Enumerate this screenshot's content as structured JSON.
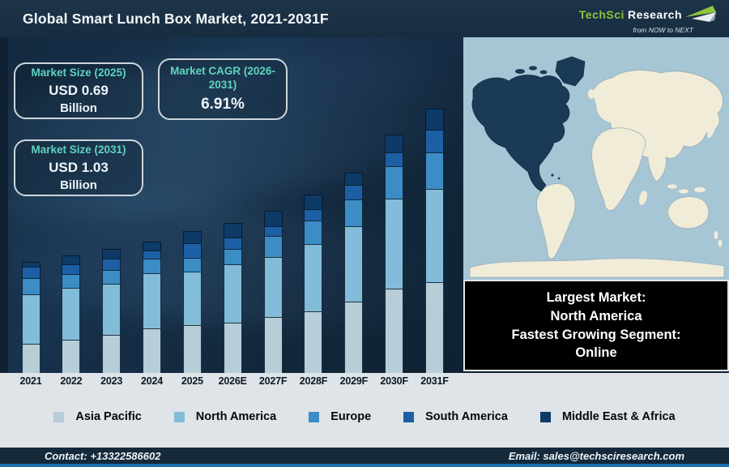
{
  "header": {
    "title": "Global Smart Lunch Box Market, 2021-2031F",
    "logo": {
      "brand_primary": "TechSci",
      "brand_secondary": "Research",
      "tagline": "from NOW to NEXT",
      "brand_color": "#8dc63f"
    }
  },
  "stat_boxes": [
    {
      "label": "Market Size (2025)",
      "value": "USD 0.69",
      "unit": "Billion"
    },
    {
      "label": "Market CAGR (2026-2031)",
      "value": "6.91%",
      "unit": ""
    },
    {
      "label": "Market Size (2031)",
      "value": "USD 1.03",
      "unit": "Billion"
    }
  ],
  "chart_data": {
    "type": "bar",
    "stacked": true,
    "title": "Global Smart Lunch Box Market, 2021-2031F",
    "categories": [
      "2021",
      "2022",
      "2023",
      "2024",
      "2025",
      "2026E",
      "2027F",
      "2028F",
      "2029F",
      "2030F",
      "2031F"
    ],
    "series": [
      {
        "name": "Asia Pacific",
        "color": "#b7cdd7",
        "values": [
          36,
          41,
          47,
          55,
          59,
          62,
          69,
          76,
          88,
          104,
          112
        ]
      },
      {
        "name": "North America",
        "color": "#82bcd9",
        "values": [
          61,
          64,
          63,
          68,
          66,
          72,
          74,
          83,
          93,
          111,
          115
        ]
      },
      {
        "name": "Europe",
        "color": "#3c8dc5",
        "values": [
          20,
          17,
          17,
          18,
          17,
          19,
          26,
          29,
          33,
          40,
          45
        ]
      },
      {
        "name": "South America",
        "color": "#1d5fa5",
        "values": [
          14,
          12,
          14,
          10,
          18,
          14,
          12,
          14,
          18,
          17,
          28
        ]
      },
      {
        "name": "Middle East & Africa",
        "color": "#0d3a66",
        "values": [
          6,
          11,
          12,
          11,
          15,
          18,
          19,
          18,
          15,
          22,
          26
        ]
      }
    ],
    "value_unit": "relative stacked-bar height (no numeric y-axis shown)",
    "known_values": {
      "market_size_2025": "USD 0.69 Billion",
      "market_size_2031": "USD 1.03 Billion",
      "cagr_2026_2031": "6.91%"
    },
    "legend_position": "bottom",
    "axes": {
      "y_axis_visible": false
    }
  },
  "map": {
    "highlighted_region": "North America",
    "ocean_color": "#a6c5d5",
    "land_color": "#f0ecd8",
    "highlight_color": "#1b3a55"
  },
  "callout": {
    "lines": [
      "Largest Market:",
      "North America",
      "Fastest Growing Segment:",
      "Online"
    ]
  },
  "footer": {
    "contact_label": "Contact: +13322586602",
    "email_label": "Email: sales@techsciresearch.com"
  }
}
